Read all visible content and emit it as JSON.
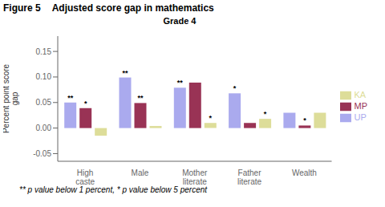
{
  "chart_data": {
    "type": "bar",
    "figure_label": "Figure 5",
    "subtitle": "Adjusted score gap in mathematics",
    "title": "Grade 4",
    "ylabel": "Percent point score\ngap",
    "footnote": "** p value below  1 percent, * p value below  5 percent",
    "categories": [
      "High\ncaste",
      "Male",
      "Mother\nliterate",
      "Father\nliterate",
      "Wealth"
    ],
    "series": [
      {
        "name": "UP",
        "color": "#aaaaee",
        "values": [
          0.05,
          0.099,
          0.079,
          0.068,
          0.03
        ],
        "annotations": [
          "**",
          "**",
          "**",
          "*",
          null
        ]
      },
      {
        "name": "MP",
        "color": "#993355",
        "values": [
          0.039,
          0.049,
          0.089,
          0.01,
          0.005
        ],
        "annotations": [
          "*",
          "**",
          null,
          null,
          "*"
        ]
      },
      {
        "name": "KA",
        "color": "#dddd99",
        "values": [
          -0.015,
          0.004,
          0.01,
          0.018,
          0.03
        ],
        "annotations": [
          null,
          null,
          "*",
          "*",
          null
        ]
      }
    ],
    "ylim": [
      -0.065,
      0.18
    ],
    "yticks": [
      -0.05,
      {
        "value": 0,
        "label": "0.00"
      },
      0.05,
      {
        "value": 0.1,
        "label": "0.10"
      },
      0.15
    ],
    "grid": false,
    "legend": "right"
  }
}
